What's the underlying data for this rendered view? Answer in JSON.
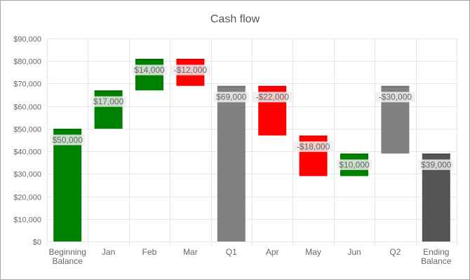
{
  "chart_data": {
    "type": "bar",
    "subtype": "waterfall",
    "title": "Cash flow",
    "xlabel": "",
    "ylabel": "",
    "ylim": [
      0,
      90000
    ],
    "y_ticks": [
      0,
      10000,
      20000,
      30000,
      40000,
      50000,
      60000,
      70000,
      80000,
      90000
    ],
    "y_tick_labels": [
      "$0",
      "$10,000",
      "$20,000",
      "$30,000",
      "$40,000",
      "$50,000",
      "$60,000",
      "$70,000",
      "$80,000",
      "$90,000"
    ],
    "grid": true,
    "legend": "none",
    "categories": [
      [
        "Beginning",
        "Balance"
      ],
      [
        "Jan"
      ],
      [
        "Feb"
      ],
      [
        "Mar"
      ],
      [
        "Q1"
      ],
      [
        "Apr"
      ],
      [
        "May"
      ],
      [
        "Jun"
      ],
      [
        "Q2"
      ],
      [
        "Ending",
        "Balance"
      ]
    ],
    "bars": [
      {
        "start": 0,
        "end": 50000,
        "kind": "increase",
        "label": "$50,000"
      },
      {
        "start": 50000,
        "end": 67000,
        "kind": "increase",
        "label": "$17,000"
      },
      {
        "start": 67000,
        "end": 81000,
        "kind": "increase",
        "label": "$14,000"
      },
      {
        "start": 81000,
        "end": 69000,
        "kind": "decrease",
        "label": "-$12,000"
      },
      {
        "start": 0,
        "end": 69000,
        "kind": "subtotal",
        "label": "$69,000"
      },
      {
        "start": 69000,
        "end": 47000,
        "kind": "decrease",
        "label": "-$22,000"
      },
      {
        "start": 47000,
        "end": 29000,
        "kind": "decrease",
        "label": "-$18,000"
      },
      {
        "start": 29000,
        "end": 39000,
        "kind": "increase",
        "label": "$10,000"
      },
      {
        "start": 69000,
        "end": 39000,
        "kind": "subtotal",
        "label": "-$30,000"
      },
      {
        "start": 0,
        "end": 39000,
        "kind": "total",
        "label": "$39,000"
      }
    ],
    "colors": {
      "increase": "#008000",
      "decrease": "#ff0000",
      "subtotal": "#808080",
      "total": "#555555",
      "grid": "#e6e6e6",
      "axis_text": "#666666",
      "label_text": "#666666",
      "label_box": "#eeeeee"
    }
  }
}
